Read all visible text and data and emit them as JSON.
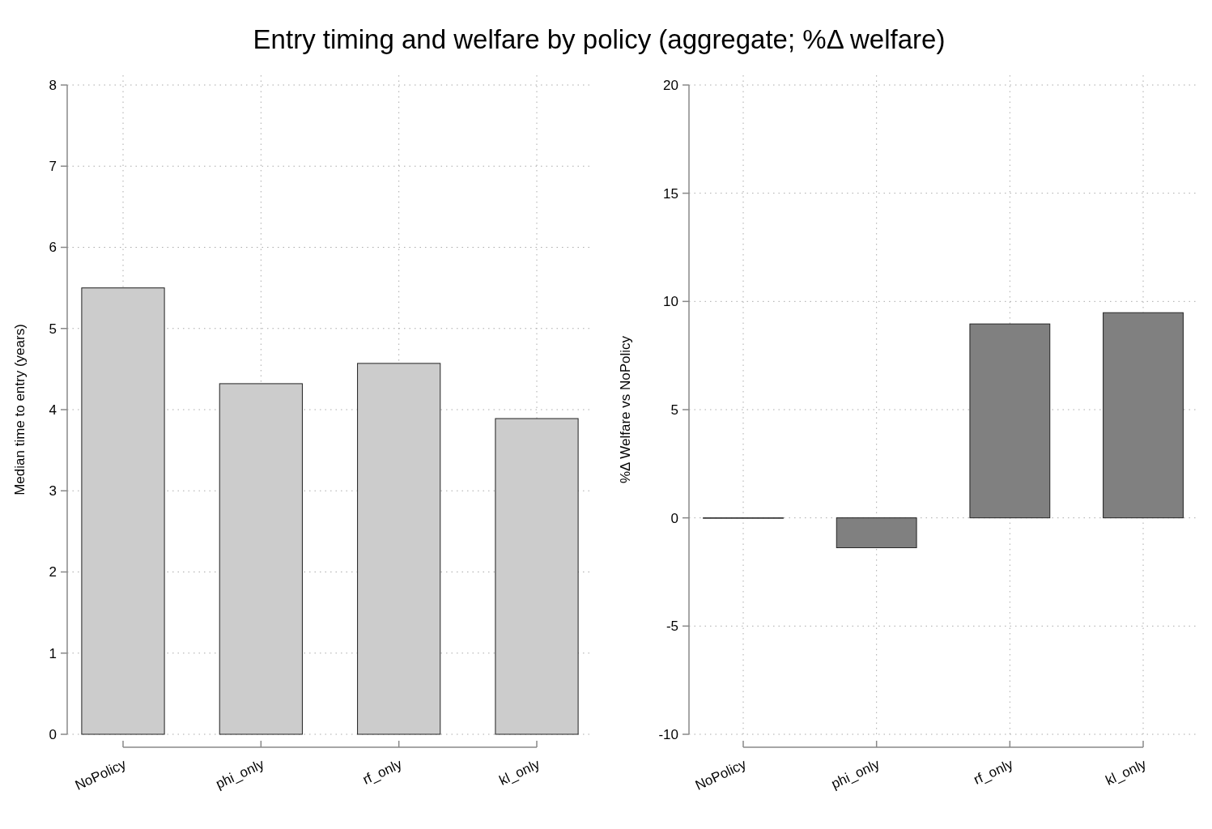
{
  "chart_data": [
    {
      "type": "bar",
      "title": "Entry timing and welfare by policy (aggregate; %Δ welfare)",
      "ylabel": "Median time to entry (years)",
      "categories": [
        "NoPolicy",
        "phi_only",
        "rf_only",
        "kl_only"
      ],
      "values": [
        5.5,
        4.32,
        4.57,
        3.89
      ],
      "color": "#cccccc",
      "ylim": [
        0,
        8
      ],
      "yticks": [
        0,
        1,
        2,
        3,
        4,
        5,
        6,
        7,
        8
      ],
      "grid": true
    },
    {
      "type": "bar",
      "ylabel": "%Δ Welfare vs NoPolicy",
      "categories": [
        "NoPolicy",
        "phi_only",
        "rf_only",
        "kl_only"
      ],
      "values": [
        0,
        -1.38,
        8.96,
        9.48
      ],
      "color": "#808080",
      "ylim": [
        -10,
        20
      ],
      "yticks": [
        -10,
        -5,
        0,
        5,
        10,
        15,
        20
      ],
      "grid": true
    }
  ]
}
